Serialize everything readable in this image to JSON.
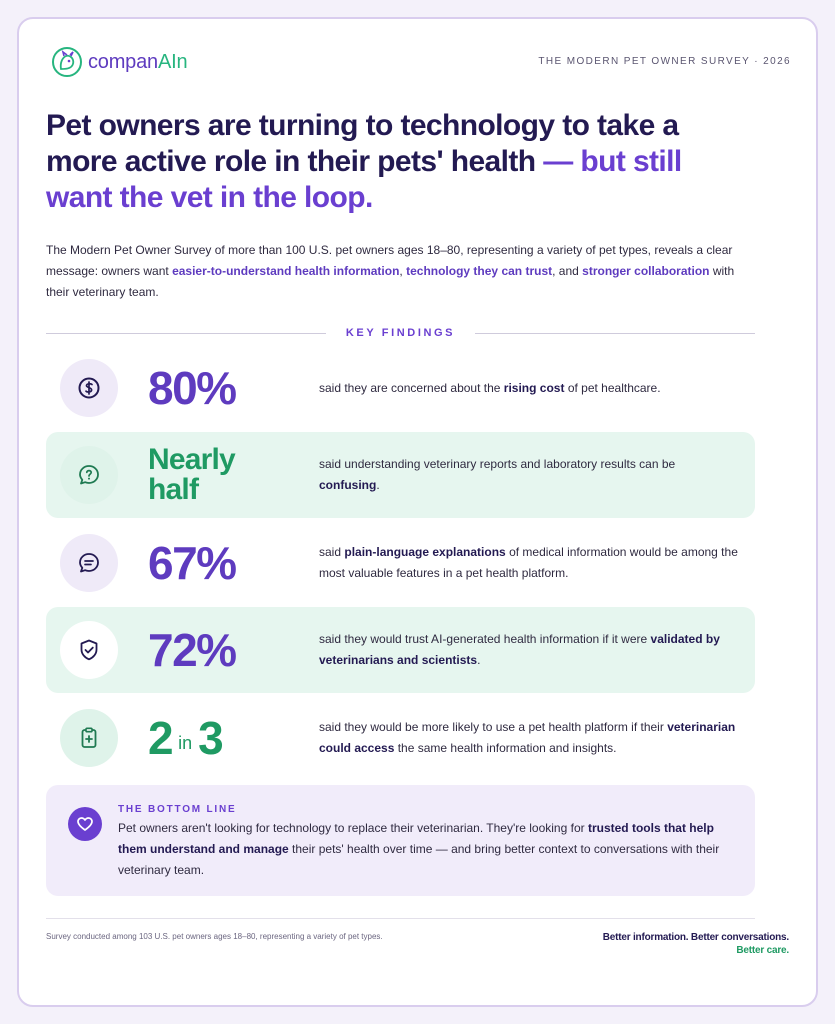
{
  "brand": {
    "name_part1": "compan",
    "name_part2": "AIn",
    "accent": "#6a3fd0",
    "green": "#1f9a63"
  },
  "survey_tag": "THE MODERN PET OWNER SURVEY · 2026",
  "headline": {
    "part1": "Pet owners are turning to technology to take a more active role in their pets' health ",
    "part2": "— but still want the vet in the loop."
  },
  "intro": {
    "t1": "The Modern Pet Owner Survey of more than 100 U.S. pet owners ages 18–80, representing a variety of pet types, reveals a clear message: owners want ",
    "b1": "easier-to-understand health information",
    "t2": ", ",
    "b2": "technology they can trust",
    "t3": ", and ",
    "b3": "stronger collaboration",
    "t4": " with their veterinary team."
  },
  "key_findings_label": "KEY FINDINGS",
  "findings": [
    {
      "icon": "dollar-icon",
      "stat": "80%",
      "d1": "said they are concerned about the ",
      "db": "rising cost",
      "d2": " of pet healthcare."
    },
    {
      "icon": "question-chat-icon",
      "stat_l1": "Nearly",
      "stat_l2": "half",
      "d1": "said understanding veterinary reports and laboratory results can be ",
      "db": "confusing",
      "d2": "."
    },
    {
      "icon": "chat-lines-icon",
      "stat": "67%",
      "d1": "said ",
      "db": "plain-language explanations",
      "d2": " of medical information would be among the most valuable features in a pet health platform."
    },
    {
      "icon": "shield-check-icon",
      "stat": "72%",
      "d1": "said they would trust AI-generated health information if it were ",
      "db": "validated by veterinarians and scientists",
      "d2": "."
    },
    {
      "icon": "medical-clipboard-icon",
      "stat_a": "2",
      "stat_in": "in",
      "stat_b": "3",
      "d1": "said they would be more likely to use a pet health platform if their ",
      "db": "veterinarian could access",
      "d2": " the same health information and insights."
    }
  ],
  "bottom_line": {
    "title": "THE BOTTOM LINE",
    "t1": "Pet owners aren't looking for technology to replace their veterinarian. They're looking for ",
    "b1": "trusted tools that help them understand and manage",
    "t2": " their pets' health over time — and bring better context to conversations with their veterinary team."
  },
  "footer": {
    "note": "Survey conducted among 103 U.S. pet owners ages 18–80, representing a variety of pet types.",
    "tag1": "Better information. Better conversations.",
    "tag2": "Better care."
  }
}
